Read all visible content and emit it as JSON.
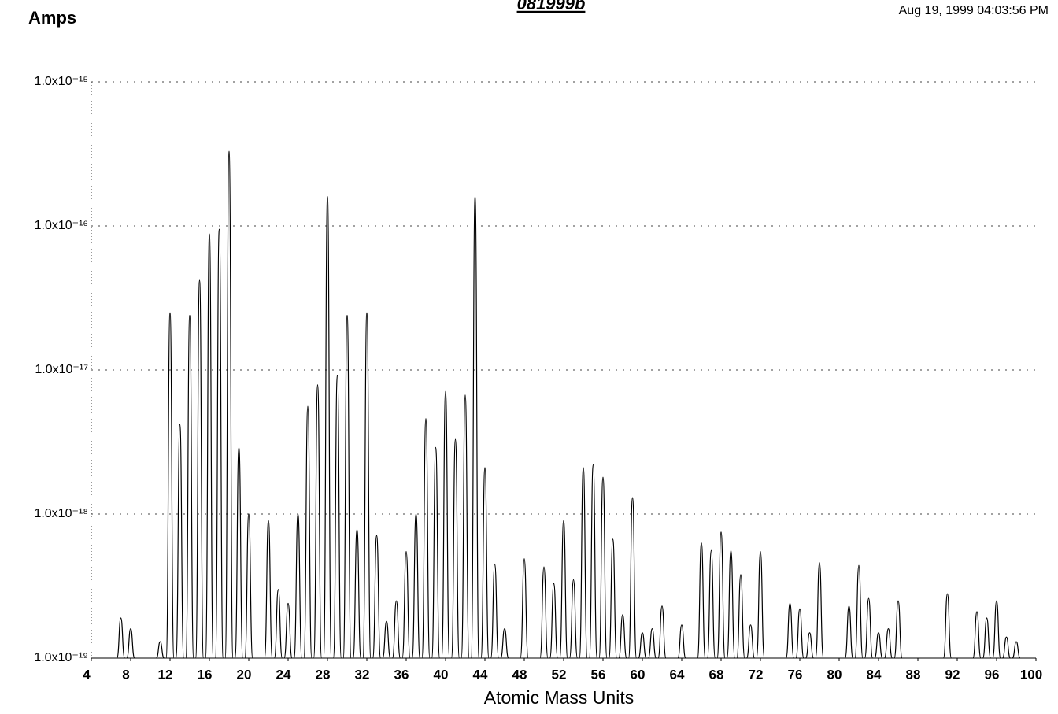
{
  "chart_data": {
    "type": "bar",
    "title": "081999b",
    "subtitle": "Aug 19, 1999  04:03:56 PM",
    "ylabel": "Amps",
    "xlabel": "Atomic Mass Units",
    "log_y": true,
    "grid": true,
    "color": "#000000",
    "xlim": [
      4,
      100
    ],
    "xticks": [
      4,
      8,
      12,
      16,
      20,
      24,
      28,
      32,
      36,
      40,
      44,
      48,
      52,
      56,
      60,
      64,
      68,
      72,
      76,
      80,
      84,
      88,
      92,
      96,
      100
    ],
    "ylim": [
      1e-19,
      1e-15
    ],
    "yticks": [
      {
        "value": 1e-19,
        "label": "1.0x10⁻¹⁹"
      },
      {
        "value": 1e-18,
        "label": "1.0x10⁻¹⁸"
      },
      {
        "value": 1e-17,
        "label": "1.0x10⁻¹⁷"
      },
      {
        "value": 1e-16,
        "label": "1.0x10⁻¹⁶"
      },
      {
        "value": 1e-15,
        "label": "1.0x10⁻¹⁵"
      }
    ],
    "x": [
      7,
      8,
      11,
      12,
      13,
      14,
      15,
      16,
      17,
      18,
      19,
      20,
      22,
      23,
      24,
      25,
      26,
      27,
      28,
      29,
      30,
      31,
      32,
      33,
      34,
      35,
      36,
      37,
      38,
      39,
      40,
      41,
      42,
      43,
      44,
      45,
      46,
      48,
      50,
      51,
      52,
      53,
      54,
      55,
      56,
      57,
      58,
      59,
      60,
      61,
      62,
      64,
      66,
      67,
      68,
      69,
      70,
      71,
      72,
      75,
      76,
      77,
      78,
      81,
      82,
      83,
      84,
      85,
      86,
      91,
      94,
      95,
      96,
      97,
      98
    ],
    "values": [
      1.9e-19,
      1.6e-19,
      1.3e-19,
      2.5e-17,
      4.2e-18,
      2.4e-17,
      4.2e-17,
      8.8e-17,
      9.5e-17,
      3.3e-16,
      2.9e-18,
      1e-18,
      9e-19,
      3e-19,
      2.4e-19,
      1e-18,
      5.6e-18,
      7.9e-18,
      1.6e-16,
      9.2e-18,
      2.4e-17,
      7.8e-19,
      2.5e-17,
      7.1e-19,
      1.8e-19,
      2.5e-19,
      5.5e-19,
      1e-18,
      4.6e-18,
      2.9e-18,
      7.1e-18,
      3.3e-18,
      6.7e-18,
      1.6e-16,
      2.1e-18,
      4.5e-19,
      1.6e-19,
      4.9e-19,
      4.3e-19,
      3.3e-19,
      9e-19,
      3.5e-19,
      2.1e-18,
      2.2e-18,
      1.8e-18,
      6.7e-19,
      2e-19,
      1.3e-18,
      1.5e-19,
      1.6e-19,
      2.3e-19,
      1.7e-19,
      6.3e-19,
      5.6e-19,
      7.5e-19,
      5.6e-19,
      3.8e-19,
      1.7e-19,
      5.5e-19,
      2.4e-19,
      2.2e-19,
      1.5e-19,
      4.6e-19,
      2.3e-19,
      4.4e-19,
      2.6e-19,
      1.5e-19,
      1.6e-19,
      2.5e-19,
      2.8e-19,
      2.1e-19,
      1.9e-19,
      2.5e-19,
      1.4e-19,
      1.3e-19
    ]
  }
}
